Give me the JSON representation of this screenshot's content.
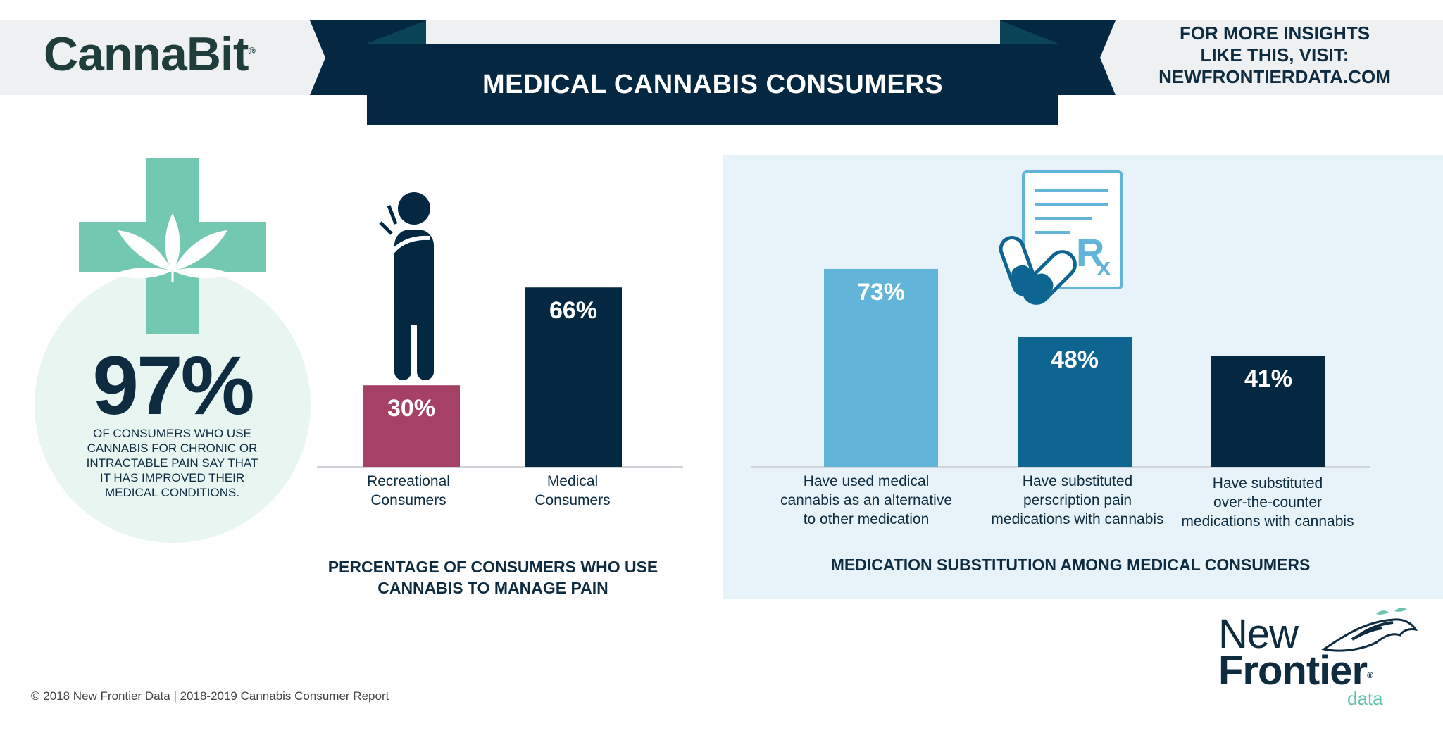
{
  "header": {
    "brand": "CannaBit",
    "brand_mark": "®",
    "title": "MEDICAL CANNABIS CONSUMERS",
    "insights_lines": [
      "FOR MORE INSIGHTS",
      "LIKE THIS, VISIT:",
      "NEWFRONTIERDATA.COM"
    ]
  },
  "stat": {
    "value": "97%",
    "description_lines": [
      "OF CONSUMERS WHO USE",
      "CANNABIS FOR CHRONIC OR",
      "INTRACTABLE PAIN SAY THAT",
      "IT HAS IMPROVED THEIR",
      "MEDICAL CONDITIONS."
    ]
  },
  "colors": {
    "navy": "#042841",
    "rose": "#a64065",
    "sky": "#62b4d8",
    "mid_blue": "#0f6591",
    "mint": "#73c8b2",
    "mint_light": "#e8f5f1",
    "panel": "#e8f3f9"
  },
  "icons": [
    "medical-cross-cannabis-leaf-icon",
    "person-in-pain-icon",
    "prescription-pills-icon",
    "new-frontier-horse-logo-icon"
  ],
  "chart_data": [
    {
      "type": "bar",
      "title_lines": [
        "PERCENTAGE OF CONSUMERS WHO USE",
        "CANNABIS TO MANAGE PAIN"
      ],
      "categories": [
        [
          "Recreational",
          "Consumers"
        ],
        [
          "Medical",
          "Consumers"
        ]
      ],
      "values": [
        30,
        66
      ],
      "labels": [
        "30%",
        "66%"
      ],
      "colors": [
        "#a64065",
        "#042841"
      ],
      "ylim": [
        0,
        100
      ]
    },
    {
      "type": "bar",
      "title_lines": [
        "MEDICATION SUBSTITUTION AMONG MEDICAL CONSUMERS"
      ],
      "categories": [
        [
          "Have used medical",
          "cannabis as an alternative",
          "to other medication"
        ],
        [
          "Have substituted",
          "perscription pain",
          "medications with cannabis"
        ],
        [
          "Have substituted",
          "over-the-counter",
          "medications with cannabis"
        ]
      ],
      "values": [
        73,
        48,
        41
      ],
      "labels": [
        "73%",
        "48%",
        "41%"
      ],
      "colors": [
        "#62b4d8",
        "#0f6591",
        "#042841"
      ],
      "ylim": [
        0,
        100
      ]
    }
  ],
  "footer": {
    "copyright": "© 2018  New Frontier Data | 2018-2019 Cannabis Consumer Report",
    "logo_line1": "New",
    "logo_line2": "Frontier",
    "logo_mark": "®",
    "logo_line3": "data"
  }
}
